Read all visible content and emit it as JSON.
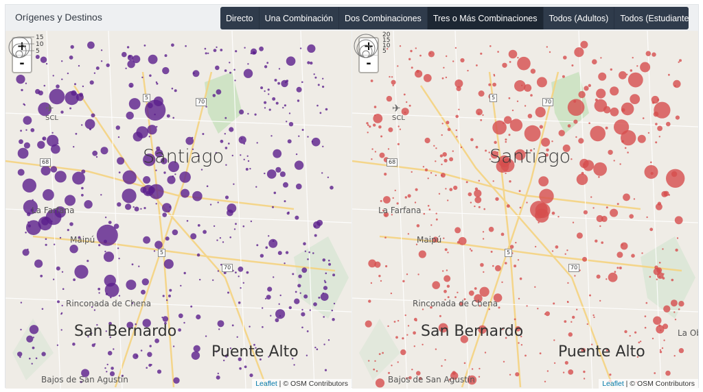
{
  "header": {
    "title": "Orígenes y Destinos",
    "tabs": [
      {
        "label": "Directo",
        "active": false
      },
      {
        "label": "Una Combinación",
        "active": false
      },
      {
        "label": "Dos Combinaciones",
        "active": false
      },
      {
        "label": "Tres o Más Combinaciones",
        "active": true
      },
      {
        "label": "Todos (Adultos)",
        "active": false
      },
      {
        "label": "Todos (Estudiante)",
        "active": false
      }
    ]
  },
  "maps": [
    {
      "id": "origins",
      "circle_color": "#5b1f8c",
      "legend_values": [
        "15",
        "10",
        "5"
      ],
      "zoom_in": "+",
      "zoom_out": "-"
    },
    {
      "id": "destinations",
      "circle_color": "#d64d4d",
      "legend_values": [
        "20",
        "15",
        "10",
        "5"
      ],
      "zoom_in": "+",
      "zoom_out": "-"
    }
  ],
  "places": {
    "santiago": "Santiago",
    "la_farfana": "La Farfana",
    "maipu": "Maipú",
    "rinconada": "Rinconada de Chena",
    "san_bernardo": "San Bernardo",
    "puente_alto": "Puente Alto",
    "bajos": "Bajos de San Agustín",
    "la_ob": "La Ob",
    "scl": "SCL"
  },
  "routes": {
    "r5": "5",
    "r70": "70",
    "r68": "68"
  },
  "attribution": {
    "leaflet": "Leaflet",
    "osm": "| © OSM Contributors"
  }
}
